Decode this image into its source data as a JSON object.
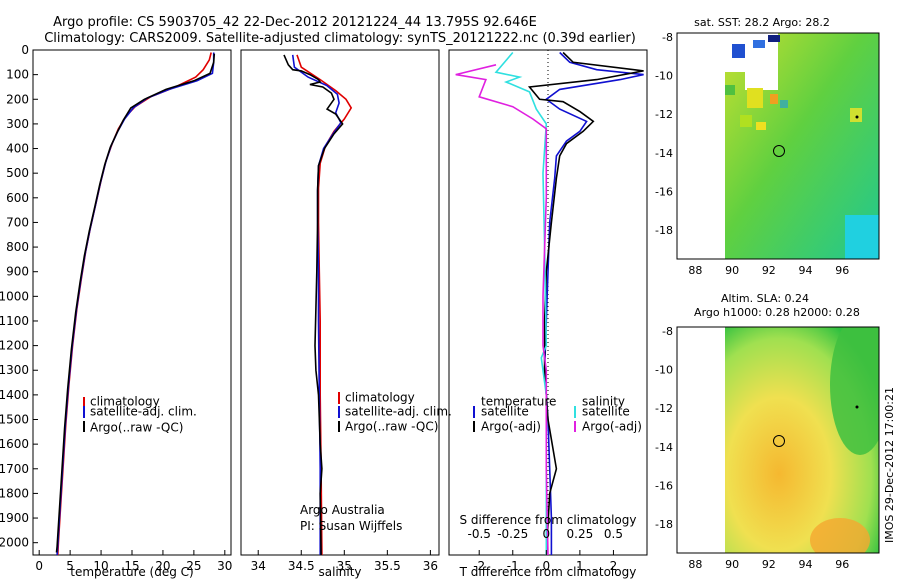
{
  "title": {
    "line1": "Argo profile: CS 5903705_42 22-Dec-2012 20121224_44 13.795S 92.646E",
    "line2": "Climatology: CARS2009. Satellite-adjusted climatology: synTS_20121222.nc (0.39d earlier)"
  },
  "colors": {
    "climatology": "#e00000",
    "satellite": "#1010d0",
    "argo": "#000000",
    "salinity_sat": "#30e0e0",
    "salinity_argo": "#e020e0"
  },
  "chart_data": [
    {
      "type": "line",
      "id": "temperature",
      "xlabel": "temperature (deg C)",
      "xlim": [
        -1,
        31
      ],
      "ylim": [
        2050,
        0
      ],
      "xticks": [
        0,
        5,
        10,
        15,
        20,
        25,
        30
      ],
      "yticks": [
        0,
        100,
        200,
        300,
        400,
        500,
        600,
        700,
        800,
        900,
        1000,
        1100,
        1200,
        1300,
        1400,
        1500,
        1600,
        1700,
        1800,
        1900,
        2000
      ],
      "legend": [
        "climatology",
        "satellite-adj. clim.",
        "Argo(..raw -QC)"
      ],
      "series": [
        {
          "name": "climatology",
          "color": "#e00000",
          "points": [
            [
              27.8,
              10
            ],
            [
              27.5,
              40
            ],
            [
              26.5,
              80
            ],
            [
              25.3,
              110
            ],
            [
              22,
              150
            ],
            [
              18,
              190
            ],
            [
              15.5,
              230
            ],
            [
              14,
              270
            ],
            [
              12.8,
              320
            ],
            [
              11.8,
              380
            ],
            [
              10.8,
              450
            ],
            [
              10,
              530
            ],
            [
              9.2,
              620
            ],
            [
              8.3,
              720
            ],
            [
              7.5,
              820
            ],
            [
              6.8,
              930
            ],
            [
              6.1,
              1050
            ],
            [
              5.4,
              1200
            ],
            [
              4.8,
              1360
            ],
            [
              4.3,
              1520
            ],
            [
              3.9,
              1680
            ],
            [
              3.5,
              1840
            ],
            [
              3.1,
              2000
            ],
            [
              3.0,
              2050
            ]
          ]
        },
        {
          "name": "satellite-adj. clim.",
          "color": "#1010d0",
          "points": [
            [
              28.2,
              10
            ],
            [
              28.2,
              50
            ],
            [
              28,
              95
            ],
            [
              25.5,
              125
            ],
            [
              21,
              160
            ],
            [
              17.5,
              195
            ],
            [
              15.2,
              235
            ],
            [
              13.8,
              280
            ],
            [
              12.7,
              330
            ],
            [
              11.6,
              390
            ],
            [
              10.7,
              460
            ],
            [
              9.9,
              540
            ],
            [
              9.1,
              630
            ],
            [
              8.2,
              730
            ],
            [
              7.4,
              830
            ],
            [
              6.7,
              940
            ],
            [
              6.0,
              1060
            ],
            [
              5.3,
              1210
            ],
            [
              4.7,
              1370
            ],
            [
              4.2,
              1530
            ],
            [
              3.8,
              1690
            ],
            [
              3.4,
              1850
            ],
            [
              3.0,
              2010
            ],
            [
              2.9,
              2050
            ]
          ]
        },
        {
          "name": "Argo(..raw -QC)",
          "color": "#000000",
          "points": [
            [
              28.3,
              15
            ],
            [
              28.2,
              50
            ],
            [
              27.6,
              95
            ],
            [
              25,
              125
            ],
            [
              20.5,
              160
            ],
            [
              17,
              200
            ],
            [
              14.8,
              235
            ],
            [
              13.6,
              285
            ],
            [
              12.6,
              335
            ],
            [
              11.5,
              395
            ],
            [
              10.6,
              465
            ],
            [
              9.8,
              545
            ],
            [
              9.0,
              635
            ],
            [
              8.1,
              735
            ],
            [
              7.3,
              835
            ],
            [
              6.6,
              945
            ],
            [
              5.9,
              1065
            ],
            [
              5.2,
              1215
            ],
            [
              4.6,
              1375
            ],
            [
              4.1,
              1535
            ],
            [
              3.7,
              1695
            ],
            [
              3.3,
              1855
            ],
            [
              2.9,
              2015
            ],
            [
              2.8,
              2040
            ]
          ]
        }
      ]
    },
    {
      "type": "line",
      "id": "salinity",
      "xlabel": "salinity",
      "xlim": [
        33.8,
        36.1
      ],
      "ylim": [
        2050,
        0
      ],
      "xticks": [
        34,
        34.5,
        35,
        35.5,
        36
      ],
      "legend": [
        "climatology",
        "satellite-adj. clim.",
        "Argo(..raw -QC)"
      ],
      "annotation": [
        "Argo Australia",
        "PI: Susan Wijffels"
      ],
      "series": [
        {
          "name": "climatology",
          "color": "#e00000",
          "points": [
            [
              34.45,
              20
            ],
            [
              34.5,
              70
            ],
            [
              34.72,
              120
            ],
            [
              34.9,
              165
            ],
            [
              35.02,
              200
            ],
            [
              35.08,
              235
            ],
            [
              35.0,
              280
            ],
            [
              34.88,
              330
            ],
            [
              34.78,
              390
            ],
            [
              34.72,
              460
            ],
            [
              34.7,
              560
            ],
            [
              34.7,
              700
            ],
            [
              34.71,
              900
            ],
            [
              34.72,
              1100
            ],
            [
              34.72,
              1400
            ],
            [
              34.73,
              1700
            ],
            [
              34.74,
              2050
            ]
          ]
        },
        {
          "name": "satellite-adj. clim.",
          "color": "#1010d0",
          "points": [
            [
              34.4,
              20
            ],
            [
              34.42,
              70
            ],
            [
              34.58,
              110
            ],
            [
              34.8,
              145
            ],
            [
              34.92,
              180
            ],
            [
              34.94,
              215
            ],
            [
              34.9,
              255
            ],
            [
              34.96,
              295
            ],
            [
              34.87,
              340
            ],
            [
              34.76,
              400
            ],
            [
              34.7,
              470
            ],
            [
              34.69,
              570
            ],
            [
              34.69,
              700
            ],
            [
              34.7,
              900
            ],
            [
              34.7,
              1100
            ],
            [
              34.71,
              1400
            ],
            [
              34.72,
              1700
            ],
            [
              34.72,
              2050
            ]
          ]
        },
        {
          "name": "Argo(..raw -QC)",
          "color": "#000000",
          "points": [
            [
              34.3,
              20
            ],
            [
              34.35,
              60
            ],
            [
              34.4,
              80
            ],
            [
              34.5,
              85
            ],
            [
              34.6,
              100
            ],
            [
              34.7,
              120
            ],
            [
              34.72,
              130
            ],
            [
              34.6,
              140
            ],
            [
              34.75,
              150
            ],
            [
              34.85,
              175
            ],
            [
              34.88,
              200
            ],
            [
              34.8,
              240
            ],
            [
              34.9,
              260
            ],
            [
              34.98,
              300
            ],
            [
              34.88,
              340
            ],
            [
              34.77,
              400
            ],
            [
              34.7,
              470
            ],
            [
              34.69,
              570
            ],
            [
              34.69,
              700
            ],
            [
              34.68,
              900
            ],
            [
              34.66,
              1200
            ],
            [
              34.67,
              1300
            ],
            [
              34.7,
              1400
            ],
            [
              34.72,
              1600
            ],
            [
              34.74,
              1700
            ],
            [
              34.72,
              1800
            ],
            [
              34.73,
              2050
            ]
          ]
        }
      ]
    },
    {
      "type": "line",
      "id": "differences",
      "xlabel": "T difference from climatology",
      "xlabel_top": "S difference from climatology",
      "xlim": [
        -2.9,
        3.0
      ],
      "ylim": [
        2050,
        0
      ],
      "xticks": [
        -2,
        -1,
        0,
        1,
        2
      ],
      "s_tick_labels": [
        "-0.5",
        "-0.25",
        "0",
        "0.25",
        "0.5"
      ],
      "legend_titles": [
        "temperature",
        "salinity"
      ],
      "legend": [
        "satellite",
        "Argo(-adj)",
        "satellite",
        "Argo(-adj)"
      ],
      "series": [
        {
          "name": "temperature satellite",
          "color": "#1010d0",
          "points": [
            [
              0.4,
              10
            ],
            [
              0.7,
              50
            ],
            [
              1.5,
              80
            ],
            [
              2.9,
              100
            ],
            [
              2.2,
              120
            ],
            [
              0.4,
              160
            ],
            [
              0,
              200
            ],
            [
              0.4,
              240
            ],
            [
              1.2,
              290
            ],
            [
              1.0,
              330
            ],
            [
              0.6,
              370
            ],
            [
              0.3,
              430
            ],
            [
              0.25,
              520
            ],
            [
              0.1,
              700
            ],
            [
              0.05,
              900
            ],
            [
              0.0,
              1100
            ],
            [
              -0.05,
              1300
            ],
            [
              0.05,
              1500
            ],
            [
              0.1,
              1700
            ],
            [
              0.15,
              1900
            ],
            [
              0.15,
              2050
            ]
          ]
        },
        {
          "name": "temperature Argo(-adj)",
          "color": "#000000",
          "points": [
            [
              0.5,
              10
            ],
            [
              0.8,
              50
            ],
            [
              2.9,
              85
            ],
            [
              1.5,
              120
            ],
            [
              -0.5,
              150
            ],
            [
              -0.2,
              200
            ],
            [
              0.5,
              210
            ],
            [
              1.0,
              250
            ],
            [
              1.4,
              290
            ],
            [
              1.1,
              330
            ],
            [
              0.6,
              380
            ],
            [
              0.4,
              430
            ],
            [
              0.3,
              520
            ],
            [
              0.15,
              700
            ],
            [
              0.0,
              900
            ],
            [
              -0.05,
              1100
            ],
            [
              -0.05,
              1300
            ],
            [
              0.05,
              1500
            ],
            [
              0.3,
              1700
            ],
            [
              0.1,
              1800
            ],
            [
              0.0,
              2050
            ]
          ]
        },
        {
          "name": "salinity satellite",
          "color": "#30e0e0",
          "points": [
            [
              -1.0,
              10
            ],
            [
              -1.5,
              90
            ],
            [
              -0.8,
              110
            ],
            [
              -1.2,
              130
            ],
            [
              -0.5,
              170
            ],
            [
              -0.3,
              240
            ],
            [
              0,
              300
            ],
            [
              -0.1,
              500
            ],
            [
              -0.05,
              800
            ],
            [
              0,
              1200
            ],
            [
              -0.15,
              1250
            ],
            [
              0,
              1400
            ],
            [
              0,
              1700
            ],
            [
              0,
              2050
            ]
          ]
        },
        {
          "name": "salinity Argo(-adj)",
          "color": "#e020e0",
          "points": [
            [
              -1.5,
              60
            ],
            [
              -2.7,
              100
            ],
            [
              -1.8,
              120
            ],
            [
              -2.0,
              190
            ],
            [
              -1.0,
              230
            ],
            [
              -0.4,
              280
            ],
            [
              0,
              320
            ],
            [
              0,
              600
            ],
            [
              -0.1,
              1000
            ],
            [
              -0.1,
              1200
            ],
            [
              0,
              1300
            ],
            [
              0,
              1700
            ],
            [
              0.05,
              2050
            ]
          ]
        }
      ]
    },
    {
      "type": "heatmap",
      "id": "sst-map",
      "title": "sat. SST: 28.2 Argo: 28.2",
      "xlim": [
        87,
        98
      ],
      "ylim": [
        -19.5,
        -7.8
      ],
      "xticks": [
        88,
        90,
        92,
        94,
        96
      ],
      "yticks": [
        -8,
        -10,
        -12,
        -14,
        -16,
        -18
      ],
      "argo_position": [
        92.65,
        -13.8
      ]
    },
    {
      "type": "heatmap",
      "id": "sla-map",
      "title": "Altim. SLA: 0.24",
      "subtitle": "Argo h1000: 0.28 h2000: 0.28",
      "xlim": [
        87,
        98
      ],
      "ylim": [
        -19.5,
        -7.8
      ],
      "xticks": [
        88,
        90,
        92,
        94,
        96
      ],
      "yticks": [
        -8,
        -10,
        -12,
        -14,
        -16,
        -18
      ],
      "argo_position": [
        92.65,
        -13.8
      ]
    }
  ],
  "watermark": "IMOS 29-Dec-2012 17:00:21"
}
